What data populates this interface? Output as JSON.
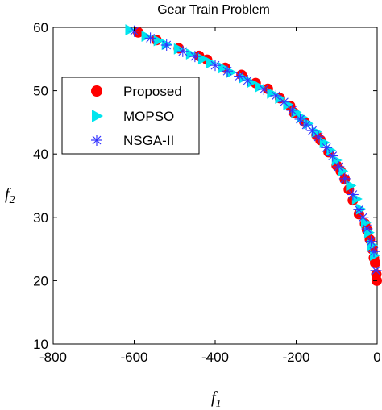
{
  "chart_data": {
    "type": "scatter",
    "title": "Gear Train Problem",
    "xlabel": "f",
    "xlabel_sub": "1",
    "ylabel": "f",
    "ylabel_sub": "2",
    "xlim": [
      -800,
      0
    ],
    "ylim": [
      10,
      60
    ],
    "xticks": [
      -800,
      -600,
      -400,
      -200,
      0
    ],
    "yticks": [
      10,
      20,
      30,
      40,
      50,
      60
    ],
    "xtick_labels": [
      "-800",
      "-600",
      "-400",
      "-200",
      "0"
    ],
    "ytick_labels": [
      "10",
      "20",
      "30",
      "40",
      "50",
      "60"
    ],
    "grid": false,
    "legend_position": "upper-left",
    "series": [
      {
        "name": "Proposed",
        "marker": "circle",
        "color": "#ff0000",
        "x": [
          -590,
          -545,
          -490,
          -440,
          -420,
          -375,
          -335,
          -300,
          -270,
          -240,
          -215,
          -205,
          -180,
          -150,
          -140,
          -120,
          -100,
          -90,
          -80,
          -70,
          -60,
          -45,
          -30,
          -25,
          -18,
          -12,
          -8,
          -5,
          -2,
          -1
        ],
        "y": [
          59.2,
          58.0,
          56.7,
          55.5,
          54.9,
          53.6,
          52.5,
          51.2,
          50.3,
          48.8,
          47.6,
          46.5,
          45.1,
          43.0,
          42.2,
          40.3,
          38.2,
          37.3,
          36.0,
          34.4,
          32.7,
          30.5,
          29.0,
          28.0,
          26.5,
          25.0,
          23.6,
          22.8,
          21.0,
          20.0
        ]
      },
      {
        "name": "MOPSO",
        "marker": "triangle-right",
        "color": "#00e5ee",
        "x": [
          -610,
          -570,
          -540,
          -520,
          -490,
          -460,
          -430,
          -410,
          -380,
          -360,
          -330,
          -310,
          -290,
          -260,
          -240,
          -220,
          -200,
          -185,
          -170,
          -150,
          -130,
          -115,
          -100,
          -85,
          -65,
          -50,
          -40,
          -28,
          -20,
          -12,
          -6
        ],
        "y": [
          59.6,
          58.6,
          57.9,
          57.3,
          56.6,
          55.8,
          55.0,
          54.4,
          53.6,
          52.9,
          52.0,
          51.3,
          50.6,
          49.6,
          48.8,
          47.8,
          46.6,
          45.8,
          44.8,
          43.5,
          41.8,
          40.6,
          39.0,
          37.3,
          35.0,
          32.9,
          31.3,
          29.2,
          27.6,
          25.6,
          24.0
        ]
      },
      {
        "name": "NSGA-II",
        "marker": "asterisk",
        "color": "#3333ff",
        "x": [
          -600,
          -560,
          -520,
          -480,
          -450,
          -400,
          -370,
          -340,
          -320,
          -280,
          -250,
          -230,
          -210,
          -190,
          -175,
          -160,
          -145,
          -125,
          -110,
          -95,
          -80,
          -60,
          -45,
          -35,
          -25,
          -15,
          -8,
          -3
        ],
        "y": [
          59.4,
          58.3,
          57.2,
          56.2,
          55.4,
          54.0,
          53.1,
          52.3,
          51.6,
          50.2,
          49.2,
          48.2,
          46.9,
          45.5,
          44.6,
          43.7,
          42.7,
          41.0,
          39.7,
          38.0,
          36.1,
          33.6,
          31.2,
          30.0,
          28.2,
          26.2,
          24.6,
          21.6
        ]
      }
    ]
  }
}
